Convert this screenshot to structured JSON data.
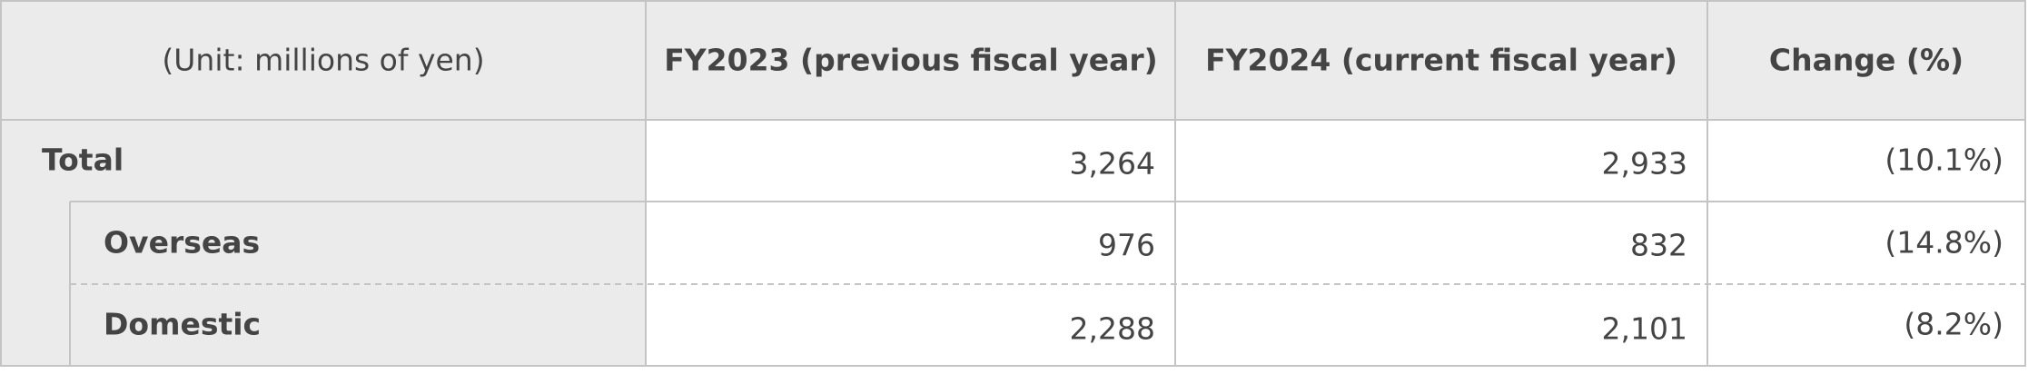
{
  "table": {
    "header": [
      "(Unit: millions of yen)",
      "FY2023 (previous fiscal year)",
      "FY2024 (current fiscal year)",
      "Change (%)"
    ],
    "rows": [
      [
        "Total",
        "3,264",
        "2,933",
        "(10.1%)"
      ],
      [
        "Overseas",
        "976",
        "832",
        "(14.8%)"
      ],
      [
        "Domestic",
        "2,288",
        "2,101",
        "(8.2%)"
      ]
    ]
  }
}
